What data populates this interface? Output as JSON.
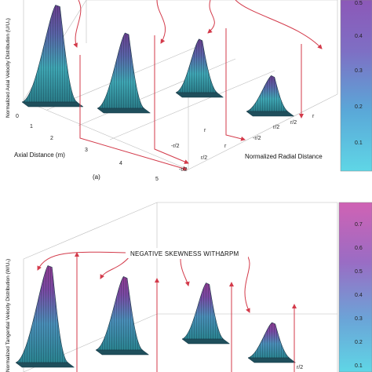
{
  "chart_data": [
    {
      "type": "surface",
      "panel_label": "(a)",
      "xlabel": "Axial Distance (m)",
      "ylabel": "Normalized Axial Velocity Distribution (U/U₀)",
      "zlabel": "Normalized Radial Distance",
      "x_ticks": [
        "0",
        "1",
        "2",
        "3",
        "4",
        "5"
      ],
      "radial_ticks": [
        "-r/2",
        "r/2",
        "r",
        "-r/2",
        "r/2",
        "r",
        "-r/2",
        "r",
        "r/2"
      ],
      "colorbar_ticks": [
        "0.1",
        "0.2",
        "0.3",
        "0.4",
        "0.5"
      ],
      "colorbar_range": [
        0.05,
        0.55
      ],
      "stations": [
        {
          "axial_distance": 0.5,
          "peak": 0.95
        },
        {
          "axial_distance": 1.8,
          "peak": 0.8
        },
        {
          "axial_distance": 3.1,
          "peak": 0.62
        },
        {
          "axial_distance": 4.3,
          "peak": 0.48
        }
      ]
    },
    {
      "type": "surface",
      "panel_label": "",
      "annotation": "NEGATIVE SKEWNESS WITHΔRPM",
      "ylabel": "Normalized Tangential Velocity Distribution (W/U₀)",
      "radial_ticks": [
        "r/2"
      ],
      "colorbar_ticks": [
        "0.1",
        "0.2",
        "0.3",
        "0.4",
        "0.5",
        "0.6",
        "0.7"
      ],
      "colorbar_range": [
        0.05,
        0.75
      ],
      "stations": [
        {
          "axial_distance": 0.5,
          "peak": 0.95
        },
        {
          "axial_distance": 1.8,
          "peak": 0.78
        },
        {
          "axial_distance": 3.1,
          "peak": 0.65
        },
        {
          "axial_distance": 4.3,
          "peak": 0.45
        }
      ]
    }
  ]
}
